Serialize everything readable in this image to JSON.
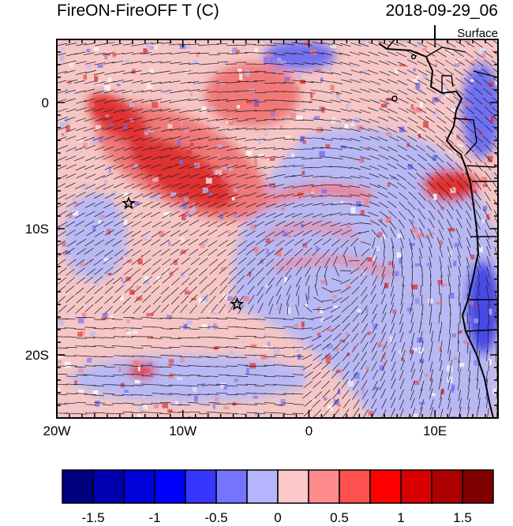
{
  "title_left": "FireON-FireOFF T (C)",
  "title_right": "2018-09-29_06",
  "level_label": "Surface",
  "map": {
    "lon_range": [
      -20,
      15
    ],
    "lat_range": [
      -25,
      5
    ],
    "x_ticks": [
      {
        "value": -20,
        "label": "20W"
      },
      {
        "value": -10,
        "label": "10W"
      },
      {
        "value": 0,
        "label": "0"
      },
      {
        "value": 10,
        "label": "10E"
      }
    ],
    "y_ticks": [
      {
        "value": 0,
        "label": "0"
      },
      {
        "value": -10,
        "label": "10S"
      },
      {
        "value": -20,
        "label": "20S"
      }
    ],
    "markers": [
      {
        "name": "star-marker-1",
        "lon": -14.3,
        "lat": -8.0
      },
      {
        "name": "star-marker-2",
        "lon": -5.7,
        "lat": -16.0
      }
    ]
  },
  "colorbar": {
    "colors": [
      "#00007f",
      "#0000b0",
      "#0000d8",
      "#0000ff",
      "#3636ff",
      "#7474ff",
      "#b4b4ff",
      "#ffc8c8",
      "#ff8c8c",
      "#ff5050",
      "#ff0000",
      "#d80000",
      "#ac0000",
      "#800000"
    ],
    "labels": [
      {
        "value": "-1.5",
        "index": 1
      },
      {
        "value": "-1",
        "index": 3
      },
      {
        "value": "-0.5",
        "index": 5
      },
      {
        "value": "0",
        "index": 7
      },
      {
        "value": "0.5",
        "index": 9
      },
      {
        "value": "1",
        "index": 11
      },
      {
        "value": "1.5",
        "index": 13
      }
    ]
  },
  "palette": {
    "base_pink": "#f6c6c6",
    "light_blue": "#b8b8f4",
    "mid_red": "#f07878",
    "deep_red": "#e03030",
    "mid_blue": "#6f6ff2",
    "land_blue": "#4a4ae8"
  }
}
